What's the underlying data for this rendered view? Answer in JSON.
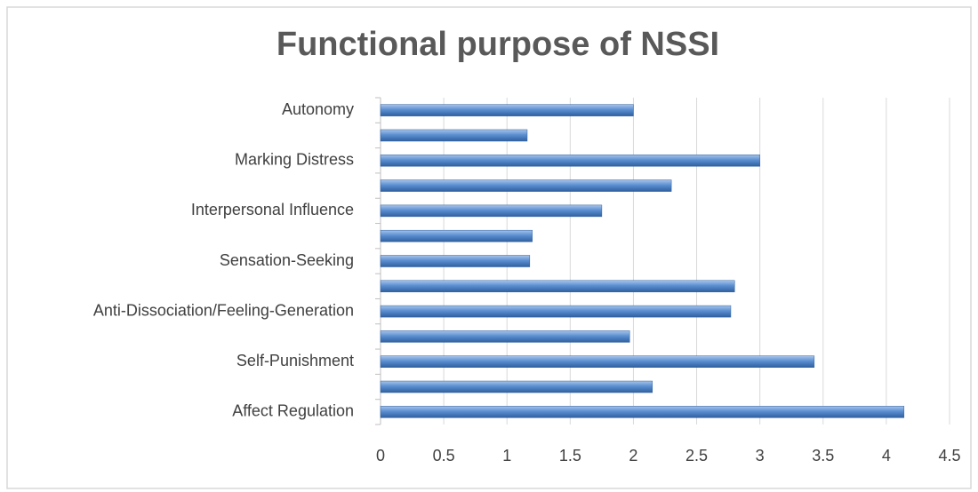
{
  "chart_data": {
    "type": "bar",
    "orientation": "horizontal",
    "title": "Functional purpose of NSSI",
    "categories": [
      "Affect Regulation",
      null,
      "Self-Punishment",
      null,
      "Anti-Dissociation/Feeling-Generation",
      null,
      "Sensation-Seeking",
      null,
      "Interpersonal Influence",
      null,
      "Marking Distress",
      null,
      "Autonomy"
    ],
    "values": [
      4.14,
      2.15,
      3.43,
      1.97,
      2.77,
      2.8,
      1.18,
      1.2,
      1.75,
      2.3,
      3.0,
      1.16,
      2.0
    ],
    "color": "#4f81bd",
    "xlim": [
      0,
      4.5
    ],
    "xticks": [
      0,
      0.5,
      1,
      1.5,
      2,
      2.5,
      3,
      3.5,
      4,
      4.5
    ],
    "grid": true
  }
}
